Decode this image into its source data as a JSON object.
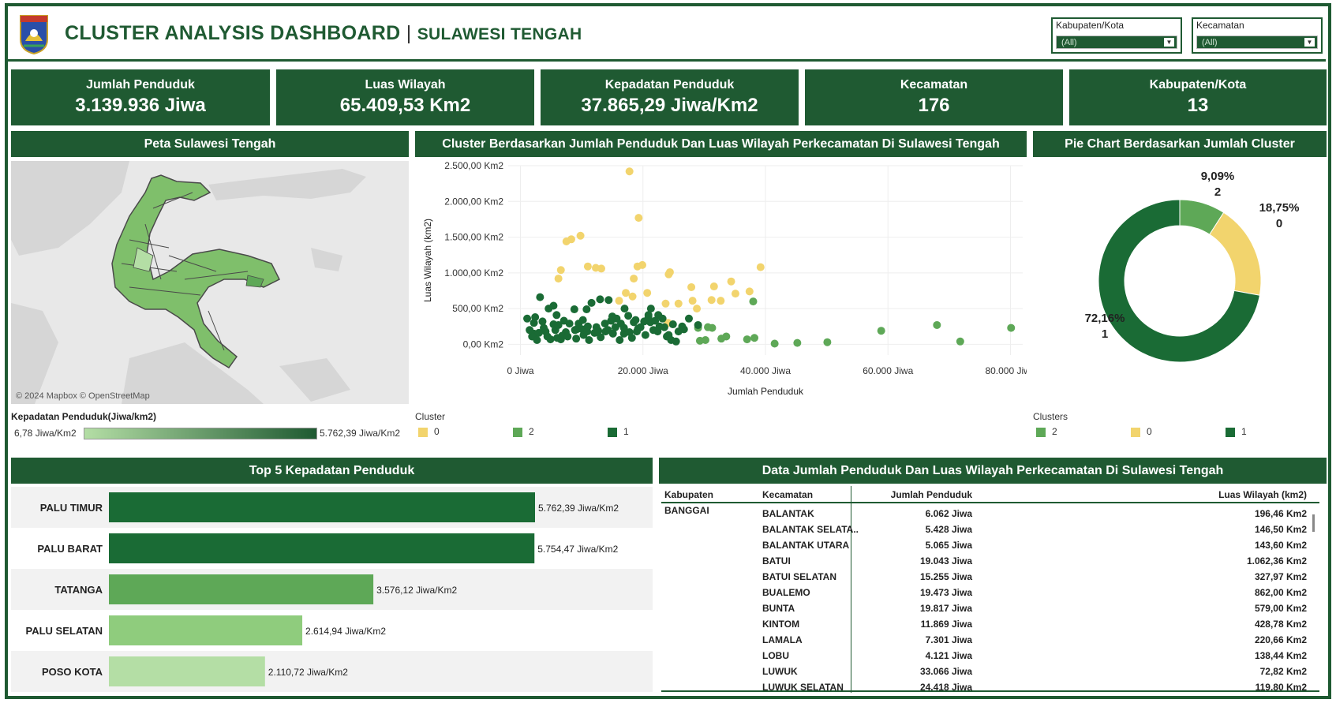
{
  "header": {
    "title": "CLUSTER ANALYSIS DASHBOARD",
    "separator": "|",
    "subtitle": "SULAWESI TENGAH",
    "logo_text": "SULAWESI TENGAH"
  },
  "filters": [
    {
      "label": "Kabupaten/Kota",
      "value": "(All)"
    },
    {
      "label": "Kecamatan",
      "value": "(All)"
    }
  ],
  "kpis": [
    {
      "label": "Jumlah Penduduk",
      "value": "3.139.936  Jiwa"
    },
    {
      "label": "Luas Wilayah",
      "value": "65.409,53 Km2"
    },
    {
      "label": "Kepadatan Penduduk",
      "value": "37.865,29 Jiwa/Km2"
    },
    {
      "label": "Kecamatan",
      "value": "176"
    },
    {
      "label": "Kabupaten/Kota",
      "value": "13"
    }
  ],
  "map": {
    "title": "Peta Sulawesi Tengah",
    "attribution": "© 2024 Mapbox © OpenStreetMap",
    "legend_title": "Kepadatan Penduduk(Jiwa/km2)",
    "legend_min": "6,78 Jiwa/Km2",
    "legend_max": "5.762,39 Jiwa/Km2",
    "color_low": "#b4dea5",
    "color_high": "#1f5a32"
  },
  "colors": {
    "cluster_0": "#f2d46d",
    "cluster_1": "#1a6b35",
    "cluster_2": "#5ea857",
    "dark": "#1f5a32"
  },
  "scatter": {
    "title": "Cluster Berdasarkan Jumlah Penduduk Dan Luas Wilayah Perkecamatan Di Sulawesi Tengah",
    "legend_title": "Cluster",
    "legend": [
      "0",
      "2",
      "1"
    ]
  },
  "pie": {
    "title": "Pie Chart Berdasarkan Jumlah Cluster",
    "legend_title": "Clusters",
    "legend": [
      "2",
      "0",
      "1"
    ],
    "labels": [
      {
        "pct": "9,09%",
        "cluster": "2"
      },
      {
        "pct": "18,75%",
        "cluster": "0"
      },
      {
        "pct": "72,16%",
        "cluster": "1"
      }
    ]
  },
  "bars": {
    "title": "Top 5 Kepadatan Penduduk"
  },
  "table": {
    "title": "Data Jumlah Penduduk Dan Luas Wilayah Perkecamatan Di Sulawesi Tengah",
    "headers": [
      "Kabupaten",
      "Kecamatan",
      "Jumlah Penduduk",
      "Luas Wilayah (km2)"
    ],
    "kabupaten": "BANGGAI",
    "rows": [
      [
        "BALANTAK",
        "6.062  Jiwa",
        "196,46 Km2"
      ],
      [
        "BALANTAK SELATA..",
        "5.428  Jiwa",
        "146,50 Km2"
      ],
      [
        "BALANTAK UTARA",
        "5.065  Jiwa",
        "143,60 Km2"
      ],
      [
        "BATUI",
        "19.043  Jiwa",
        "1.062,36 Km2"
      ],
      [
        "BATUI SELATAN",
        "15.255  Jiwa",
        "327,97 Km2"
      ],
      [
        "BUALEMO",
        "19.473  Jiwa",
        "862,00 Km2"
      ],
      [
        "BUNTA",
        "19.817  Jiwa",
        "579,00 Km2"
      ],
      [
        "KINTOM",
        "11.869  Jiwa",
        "428,78 Km2"
      ],
      [
        "LAMALA",
        "7.301  Jiwa",
        "220,66 Km2"
      ],
      [
        "LOBU",
        "4.121  Jiwa",
        "138,44 Km2"
      ],
      [
        "LUWUK",
        "33.066  Jiwa",
        "72,82 Km2"
      ],
      [
        "LUWUK SELATAN",
        "24.418  Jiwa",
        "119,80 Km2"
      ]
    ]
  },
  "chart_data": [
    {
      "type": "scatter",
      "title": "",
      "xlabel": "Jumlah Penduduk",
      "ylabel": "Luas Wilayah (km2)",
      "xlim": [
        -2000,
        82000
      ],
      "ylim": [
        -150,
        2500
      ],
      "xticks": [
        {
          "v": 0,
          "label": "0 Jiwa"
        },
        {
          "v": 20000,
          "label": "20.000 Jiwa"
        },
        {
          "v": 40000,
          "label": "40.000 Jiwa"
        },
        {
          "v": 60000,
          "label": "60.000 Jiwa"
        },
        {
          "v": 80000,
          "label": "80.000 Jiwa"
        }
      ],
      "yticks": [
        {
          "v": 0,
          "label": "0,00 Km2"
        },
        {
          "v": 500,
          "label": "500,00 Km2"
        },
        {
          "v": 1000,
          "label": "1.000,00 Km2"
        },
        {
          "v": 1500,
          "label": "1.500,00 Km2"
        },
        {
          "v": 2000,
          "label": "2.000,00 Km2"
        },
        {
          "v": 2500,
          "label": "2.500,00 Km2"
        }
      ],
      "series": [
        {
          "name": "0",
          "points": [
            [
              17800,
              2420
            ],
            [
              19300,
              1770
            ],
            [
              7500,
              1440
            ],
            [
              9800,
              1520
            ],
            [
              8300,
              1470
            ],
            [
              6200,
              920
            ],
            [
              6600,
              1040
            ],
            [
              11000,
              1090
            ],
            [
              12300,
              1070
            ],
            [
              13200,
              1060
            ],
            [
              19100,
              1090
            ],
            [
              19900,
              1110
            ],
            [
              18500,
              920
            ],
            [
              24200,
              980
            ],
            [
              24400,
              1010
            ],
            [
              17200,
              720
            ],
            [
              20700,
              720
            ],
            [
              27900,
              800
            ],
            [
              31600,
              810
            ],
            [
              34400,
              880
            ],
            [
              39200,
              1080
            ],
            [
              16100,
              610
            ],
            [
              18300,
              670
            ],
            [
              23700,
              570
            ],
            [
              25800,
              570
            ],
            [
              28100,
              610
            ],
            [
              31200,
              620
            ],
            [
              32700,
              610
            ],
            [
              35100,
              710
            ],
            [
              37400,
              740
            ],
            [
              24100,
              300
            ],
            [
              28800,
              500
            ]
          ]
        },
        {
          "name": "2",
          "points": [
            [
              38000,
              600
            ],
            [
              29000,
              230
            ],
            [
              30600,
              240
            ],
            [
              31300,
              230
            ],
            [
              29300,
              50
            ],
            [
              30200,
              60
            ],
            [
              32800,
              80
            ],
            [
              33600,
              110
            ],
            [
              37000,
              70
            ],
            [
              38200,
              90
            ],
            [
              41500,
              10
            ],
            [
              45200,
              20
            ],
            [
              50100,
              30
            ],
            [
              58900,
              190
            ],
            [
              68000,
              270
            ],
            [
              71800,
              40
            ],
            [
              80100,
              230
            ]
          ]
        },
        {
          "name": "1",
          "points": [
            [
              2400,
              380
            ],
            [
              3200,
              660
            ],
            [
              4600,
              500
            ],
            [
              2200,
              150
            ],
            [
              1100,
              360
            ],
            [
              5400,
              540
            ],
            [
              5900,
              410
            ],
            [
              8800,
              490
            ],
            [
              10800,
              490
            ],
            [
              11600,
              580
            ],
            [
              13000,
              630
            ],
            [
              14400,
              620
            ],
            [
              17000,
              500
            ],
            [
              18500,
              310
            ],
            [
              20900,
              410
            ],
            [
              21300,
              500
            ],
            [
              22500,
              410
            ],
            [
              23200,
              360
            ],
            [
              24900,
              280
            ],
            [
              26400,
              250
            ],
            [
              27500,
              360
            ],
            [
              29000,
              270
            ],
            [
              1900,
              110
            ],
            [
              3800,
              230
            ],
            [
              6000,
              90
            ],
            [
              7400,
              170
            ],
            [
              9200,
              210
            ],
            [
              10300,
              130
            ],
            [
              12100,
              160
            ],
            [
              13900,
              180
            ],
            [
              15500,
              240
            ],
            [
              16900,
              150
            ],
            [
              19200,
              220
            ],
            [
              22400,
              180
            ],
            [
              24600,
              60
            ],
            [
              25400,
              40
            ],
            [
              2700,
              60
            ],
            [
              4100,
              180
            ],
            [
              5700,
              200
            ],
            [
              6600,
              70
            ],
            [
              8000,
              290
            ],
            [
              8900,
              200
            ],
            [
              10200,
              340
            ],
            [
              11000,
              250
            ],
            [
              12400,
              240
            ],
            [
              14800,
              330
            ],
            [
              15700,
              360
            ],
            [
              16900,
              230
            ],
            [
              18200,
              90
            ],
            [
              19600,
              240
            ],
            [
              20200,
              320
            ],
            [
              21200,
              310
            ],
            [
              23500,
              240
            ],
            [
              24200,
              130
            ],
            [
              25800,
              180
            ],
            [
              3000,
              160
            ],
            [
              4900,
              70
            ],
            [
              5400,
              280
            ],
            [
              6800,
              120
            ],
            [
              7700,
              110
            ],
            [
              9100,
              80
            ],
            [
              10100,
              210
            ],
            [
              11200,
              60
            ],
            [
              13100,
              100
            ],
            [
              14300,
              200
            ],
            [
              15100,
              150
            ],
            [
              16200,
              60
            ],
            [
              17800,
              170
            ],
            [
              19000,
              180
            ],
            [
              20400,
              130
            ],
            [
              21700,
              200
            ],
            [
              22700,
              250
            ],
            [
              23900,
              110
            ],
            [
              1500,
              200
            ],
            [
              3600,
              320
            ],
            [
              4400,
              110
            ],
            [
              6200,
              270
            ],
            [
              7100,
              330
            ],
            [
              9500,
              290
            ],
            [
              10900,
              180
            ],
            [
              12700,
              190
            ],
            [
              13800,
              290
            ],
            [
              15000,
              390
            ],
            [
              16400,
              290
            ],
            [
              17600,
              400
            ],
            [
              18800,
              340
            ],
            [
              20900,
              380
            ],
            [
              22000,
              330
            ],
            [
              26700,
              210
            ],
            [
              2200,
              300
            ]
          ]
        }
      ]
    },
    {
      "type": "pie",
      "title": "",
      "slices": [
        {
          "name": "2",
          "value": 9.09
        },
        {
          "name": "0",
          "value": 18.75
        },
        {
          "name": "1",
          "value": 72.16
        }
      ]
    },
    {
      "type": "bar",
      "title": "",
      "orientation": "horizontal",
      "categories": [
        "PALU TIMUR",
        "PALU BARAT",
        "TATANGA",
        "PALU SELATAN",
        "POSO KOTA"
      ],
      "values": [
        5762.39,
        5754.47,
        3576.12,
        2614.94,
        2110.72
      ],
      "labels": [
        "5.762,39 Jiwa/Km2",
        "5.754,47 Jiwa/Km2",
        "3.576,12 Jiwa/Km2",
        "2.614,94 Jiwa/Km2",
        "2.110,72 Jiwa/Km2"
      ],
      "xlim": [
        0,
        5762.39
      ]
    }
  ]
}
